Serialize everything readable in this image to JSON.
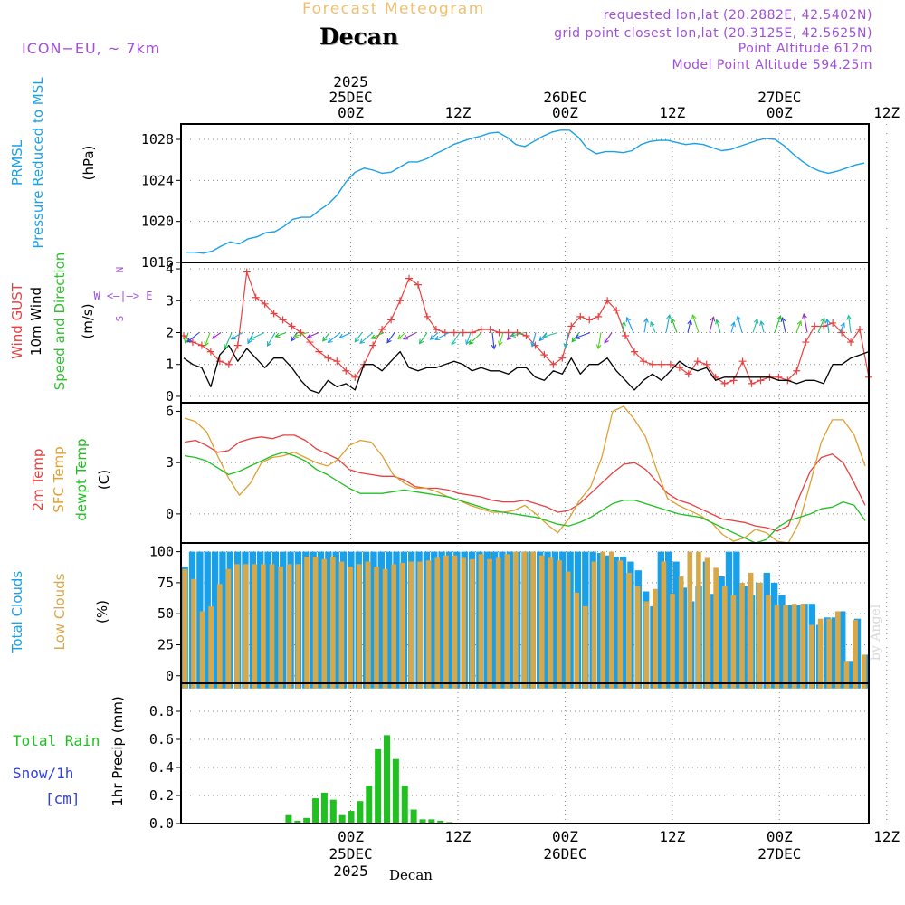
{
  "header": {
    "title": "Forecast Meteogram",
    "station": "Decan",
    "model": "ICON−EU, ~ 7km",
    "requested": "requested lon,lat (20.2882E, 42.5402N)",
    "gridpoint": "grid point closest lon,lat (20.3125E, 42.5625N)",
    "point_alt": "Point Altitude 612m",
    "model_alt": "Model Point Altitude 594.25m",
    "credit": "by Angel",
    "bottom_label": "Decan"
  },
  "colors": {
    "pressure": "#1aa0e8",
    "gust": "#e84040",
    "wind": "#000000",
    "dir": "#30c030",
    "temp2m": "#e84040",
    "sfc": "#e0a030",
    "dewpt": "#20c020",
    "total_cloud": "#1aa0e8",
    "low_cloud": "#d8a848",
    "rain": "#20c020",
    "snow": "#3040e0",
    "purple": "#a050d8",
    "grid": "#888888"
  },
  "time_axis": {
    "top": [
      {
        "x": 19,
        "lines": [
          "2025",
          "25DEC",
          "00Z"
        ]
      },
      {
        "x": 31,
        "lines": [
          "12Z"
        ]
      },
      {
        "x": 43,
        "lines": [
          "26DEC",
          "00Z"
        ]
      },
      {
        "x": 55,
        "lines": [
          "12Z"
        ]
      },
      {
        "x": 67,
        "lines": [
          "27DEC",
          "00Z"
        ]
      },
      {
        "x": 79,
        "lines": [
          "12Z"
        ]
      }
    ],
    "bottom": [
      {
        "x": 19,
        "lines": [
          "00Z",
          "25DEC",
          "2025"
        ]
      },
      {
        "x": 31,
        "lines": [
          "12Z"
        ]
      },
      {
        "x": 43,
        "lines": [
          "00Z",
          "26DEC"
        ]
      },
      {
        "x": 55,
        "lines": [
          "12Z"
        ]
      },
      {
        "x": 67,
        "lines": [
          "00Z",
          "27DEC"
        ]
      },
      {
        "x": 79,
        "lines": [
          "12Z"
        ]
      }
    ]
  },
  "labels": {
    "p1": [
      {
        "t": "PRMSL",
        "c": "pressure"
      },
      {
        "t": "Pressure Reduced to MSL",
        "c": "pressure"
      },
      {
        "t": "(hPa)",
        "c": "wind"
      }
    ],
    "p2": [
      {
        "t": "Wind GUST",
        "c": "gust"
      },
      {
        "t": "10m Wind",
        "c": "wind"
      },
      {
        "t": "Speed and Direction",
        "c": "dir"
      },
      {
        "t": "(m/s)",
        "c": "wind"
      }
    ],
    "p3": [
      {
        "t": "2m Temp",
        "c": "temp2m"
      },
      {
        "t": "SFC Temp",
        "c": "sfc"
      },
      {
        "t": "dewpt Temp",
        "c": "dewpt"
      },
      {
        "t": "(C)",
        "c": "wind"
      }
    ],
    "p4": [
      {
        "t": "Total Clouds",
        "c": "total_cloud"
      },
      {
        "t": "Low Clouds",
        "c": "low_cloud"
      },
      {
        "t": "(%)",
        "c": "wind"
      }
    ],
    "p5": [
      {
        "t": "1hr Precip (mm)",
        "c": "wind"
      }
    ],
    "compass": [
      "N",
      "W <—|—> E",
      "S"
    ],
    "rain_legend": [
      "Total  Rain",
      "Snow/1h",
      "[cm]"
    ]
  },
  "chart_data": [
    {
      "type": "line",
      "title": "PRMSL Pressure Reduced to MSL",
      "ylabel": "(hPa)",
      "x_range": [
        1,
        64
      ],
      "ylim": [
        1016,
        1029.5
      ],
      "yticks": [
        1016,
        1020,
        1024,
        1028
      ],
      "series": [
        {
          "name": "PRMSL",
          "values": [
            1017.0,
            1017.0,
            1016.9,
            1017.1,
            1017.6,
            1018.0,
            1017.8,
            1018.3,
            1018.5,
            1018.9,
            1019.0,
            1019.5,
            1020.2,
            1020.4,
            1020.4,
            1021.1,
            1021.7,
            1022.6,
            1023.9,
            1024.8,
            1025.2,
            1025.0,
            1024.7,
            1024.8,
            1025.3,
            1025.8,
            1025.8,
            1026.1,
            1026.6,
            1027.0,
            1027.5,
            1027.8,
            1028.1,
            1028.3,
            1028.6,
            1028.7,
            1028.2,
            1027.5,
            1027.3,
            1027.8,
            1028.3,
            1028.7,
            1028.9,
            1028.9,
            1028.2,
            1027.1,
            1026.6,
            1026.8,
            1026.8,
            1026.7,
            1026.9,
            1027.5,
            1027.8,
            1027.9,
            1027.9,
            1027.7,
            1027.5,
            1027.6,
            1027.5,
            1027.2,
            1026.9,
            1027.0,
            1027.3,
            1027.6,
            1027.9,
            1028.1,
            1028.0,
            1027.4,
            1026.6,
            1025.9,
            1025.3,
            1024.9,
            1024.7,
            1024.9,
            1025.2,
            1025.5,
            1025.7
          ]
        }
      ]
    },
    {
      "type": "line",
      "title": "Wind GUST / 10m Wind Speed and Direction",
      "ylabel": "(m/s)",
      "ylim": [
        -0.2,
        4.2
      ],
      "yticks": [
        0,
        1,
        2,
        3,
        4
      ],
      "series": [
        {
          "name": "Wind GUST",
          "values": [
            1.9,
            1.7,
            1.6,
            1.4,
            1.1,
            1.0,
            1.6,
            3.9,
            3.1,
            2.9,
            2.6,
            2.4,
            2.2,
            2.0,
            1.7,
            1.4,
            1.2,
            1.1,
            0.8,
            0.6,
            1.0,
            1.6,
            2.1,
            2.4,
            3.0,
            3.7,
            3.5,
            2.5,
            2.1,
            2.0,
            2.0,
            2.0,
            2.0,
            2.1,
            2.1,
            2.0,
            2.0,
            2.0,
            1.9,
            1.6,
            1.3,
            1.0,
            1.2,
            2.2,
            2.5,
            2.4,
            2.5,
            3.0,
            2.7,
            1.9,
            1.4,
            1.1,
            1.0,
            1.0,
            1.0,
            0.9,
            0.7,
            1.1,
            1.0,
            0.6,
            0.4,
            0.5,
            1.1,
            0.4,
            0.5,
            0.6,
            0.6,
            0.5,
            0.8,
            1.7,
            2.2,
            2.2,
            2.3,
            2.0,
            1.7,
            2.1,
            0.6
          ]
        },
        {
          "name": "10m Wind",
          "values": [
            1.2,
            1.0,
            0.9,
            0.3,
            1.3,
            1.6,
            1.1,
            1.5,
            1.2,
            0.9,
            1.2,
            1.2,
            0.9,
            0.5,
            0.2,
            0.1,
            0.5,
            0.3,
            0.4,
            0.2,
            1.0,
            1.0,
            0.8,
            1.1,
            1.4,
            0.9,
            0.8,
            0.9,
            0.9,
            1.0,
            1.1,
            1.0,
            0.8,
            0.9,
            0.8,
            0.8,
            0.7,
            0.9,
            0.9,
            0.6,
            0.5,
            0.8,
            0.7,
            1.2,
            0.7,
            1.0,
            1.0,
            1.2,
            0.8,
            0.5,
            0.2,
            0.5,
            0.7,
            0.5,
            0.8,
            1.1,
            0.9,
            0.8,
            0.9,
            0.5,
            0.6,
            0.6,
            0.6,
            0.6,
            0.6,
            0.6,
            0.5,
            0.5,
            0.4,
            0.5,
            0.5,
            0.4,
            1.0,
            1.0,
            1.2,
            1.3,
            1.4
          ]
        }
      ]
    },
    {
      "type": "line",
      "title": "2m Temp / SFC Temp / dewpt Temp",
      "ylabel": "(C)",
      "ylim": [
        -1.7,
        6.5
      ],
      "yticks": [
        0,
        3,
        6
      ],
      "series": [
        {
          "name": "2m Temp",
          "values": [
            4.2,
            4.3,
            4.0,
            3.6,
            3.7,
            4.2,
            4.4,
            4.5,
            4.4,
            4.6,
            4.6,
            4.3,
            3.8,
            3.5,
            3.2,
            2.6,
            2.4,
            2.3,
            2.2,
            2.2,
            2.0,
            1.6,
            1.5,
            1.5,
            1.4,
            1.2,
            1.1,
            1.0,
            0.8,
            0.7,
            0.7,
            0.8,
            0.6,
            0.4,
            0.1,
            0.2,
            0.6,
            1.2,
            1.8,
            2.4,
            2.9,
            3.0,
            2.6,
            1.9,
            1.2,
            0.8,
            0.6,
            0.3,
            0.0,
            -0.3,
            -0.4,
            -0.5,
            -0.7,
            -0.8,
            -1.0,
            -0.7,
            1.0,
            2.5,
            3.3,
            3.5,
            3.0,
            1.8,
            0.5
          ]
        },
        {
          "name": "SFC Temp",
          "values": [
            5.6,
            5.4,
            4.8,
            3.4,
            2.1,
            1.1,
            1.8,
            3.0,
            3.3,
            3.4,
            3.6,
            3.3,
            3.0,
            2.8,
            3.2,
            4.0,
            4.3,
            4.2,
            3.4,
            2.3,
            1.8,
            1.5,
            1.5,
            1.3,
            1.0,
            0.8,
            0.5,
            0.3,
            0.1,
            0.1,
            0.2,
            0.5,
            0.0,
            -0.6,
            -1.1,
            -0.3,
            0.8,
            1.6,
            3.3,
            6.0,
            6.3,
            5.5,
            4.5,
            2.6,
            0.9,
            0.5,
            0.2,
            -0.1,
            -0.5,
            -1.2,
            -1.6,
            -1.4,
            -0.9,
            -1.1,
            -1.6,
            -1.7,
            -0.5,
            1.8,
            4.2,
            5.5,
            5.5,
            4.6,
            2.8
          ]
        },
        {
          "name": "dewpt Temp",
          "values": [
            3.4,
            3.3,
            3.1,
            2.7,
            2.3,
            2.5,
            2.8,
            3.1,
            3.4,
            3.6,
            3.4,
            3.1,
            2.6,
            2.3,
            1.9,
            1.5,
            1.2,
            1.2,
            1.2,
            1.3,
            1.4,
            1.3,
            1.2,
            1.1,
            1.0,
            0.8,
            0.6,
            0.4,
            0.2,
            0.1,
            0.0,
            -0.1,
            -0.2,
            -0.4,
            -0.6,
            -0.7,
            -0.5,
            -0.2,
            0.2,
            0.6,
            0.8,
            0.8,
            0.6,
            0.4,
            0.2,
            0.0,
            -0.1,
            -0.2,
            -0.5,
            -0.8,
            -1.1,
            -1.4,
            -1.7,
            -1.5,
            -0.8,
            -0.4,
            -0.2,
            0.0,
            0.3,
            0.4,
            0.7,
            0.5,
            -0.4
          ]
        }
      ]
    },
    {
      "type": "bar",
      "title": "Total Clouds / Low Clouds",
      "ylabel": "(%)",
      "ylim": [
        -6,
        107
      ],
      "yticks": [
        0,
        25,
        50,
        75,
        100
      ],
      "series": [
        {
          "name": "Total Clouds",
          "values": [
            88,
            100,
            100,
            100,
            100,
            100,
            100,
            100,
            100,
            100,
            100,
            100,
            100,
            100,
            100,
            100,
            100,
            100,
            100,
            100,
            100,
            100,
            100,
            100,
            100,
            100,
            100,
            100,
            100,
            100,
            100,
            100,
            100,
            100,
            100,
            100,
            100,
            100,
            100,
            100,
            100,
            100,
            100,
            100,
            100,
            100,
            100,
            100,
            100,
            100,
            100,
            100,
            100,
            100,
            100,
            99,
            97,
            96,
            96,
            92,
            85,
            68,
            56,
            100,
            100,
            92,
            71,
            60,
            72,
            92,
            66,
            80,
            100,
            100,
            72,
            65,
            75,
            83,
            75,
            65,
            57,
            57,
            58,
            58,
            41,
            47,
            47,
            52,
            12,
            46,
            17
          ]
        },
        {
          "name": "Low Clouds",
          "values": [
            86,
            78,
            52,
            56,
            74,
            86,
            90,
            90,
            90,
            90,
            90,
            88,
            90,
            90,
            96,
            96,
            94,
            96,
            92,
            88,
            90,
            92,
            88,
            86,
            90,
            91,
            92,
            92,
            93,
            95,
            97,
            97,
            95,
            94,
            98,
            94,
            95,
            98,
            100,
            100,
            100,
            97,
            95,
            93,
            84,
            67,
            56,
            92,
            100,
            100,
            93,
            83,
            72,
            60,
            70,
            92,
            66,
            80,
            100,
            100,
            95,
            87,
            72,
            65,
            75,
            83,
            75,
            65,
            57,
            57,
            58,
            58,
            41,
            46,
            46,
            52,
            12,
            45,
            17
          ]
        }
      ]
    },
    {
      "type": "bar",
      "title": "1hr Precip",
      "ylabel": "1hr Precip (mm)",
      "ylim": [
        0,
        1.0
      ],
      "yticks": [
        0,
        0.2,
        0.4,
        0.6,
        0.8
      ],
      "categories_start_hour": 12,
      "series": [
        {
          "name": "Total Rain",
          "values": [
            0.06,
            0.02,
            0.04,
            0.18,
            0.22,
            0.17,
            0.06,
            0.09,
            0.16,
            0.27,
            0.53,
            0.63,
            0.46,
            0.27,
            0.1,
            0.03,
            0.03,
            0.02,
            0.01
          ]
        }
      ]
    }
  ]
}
